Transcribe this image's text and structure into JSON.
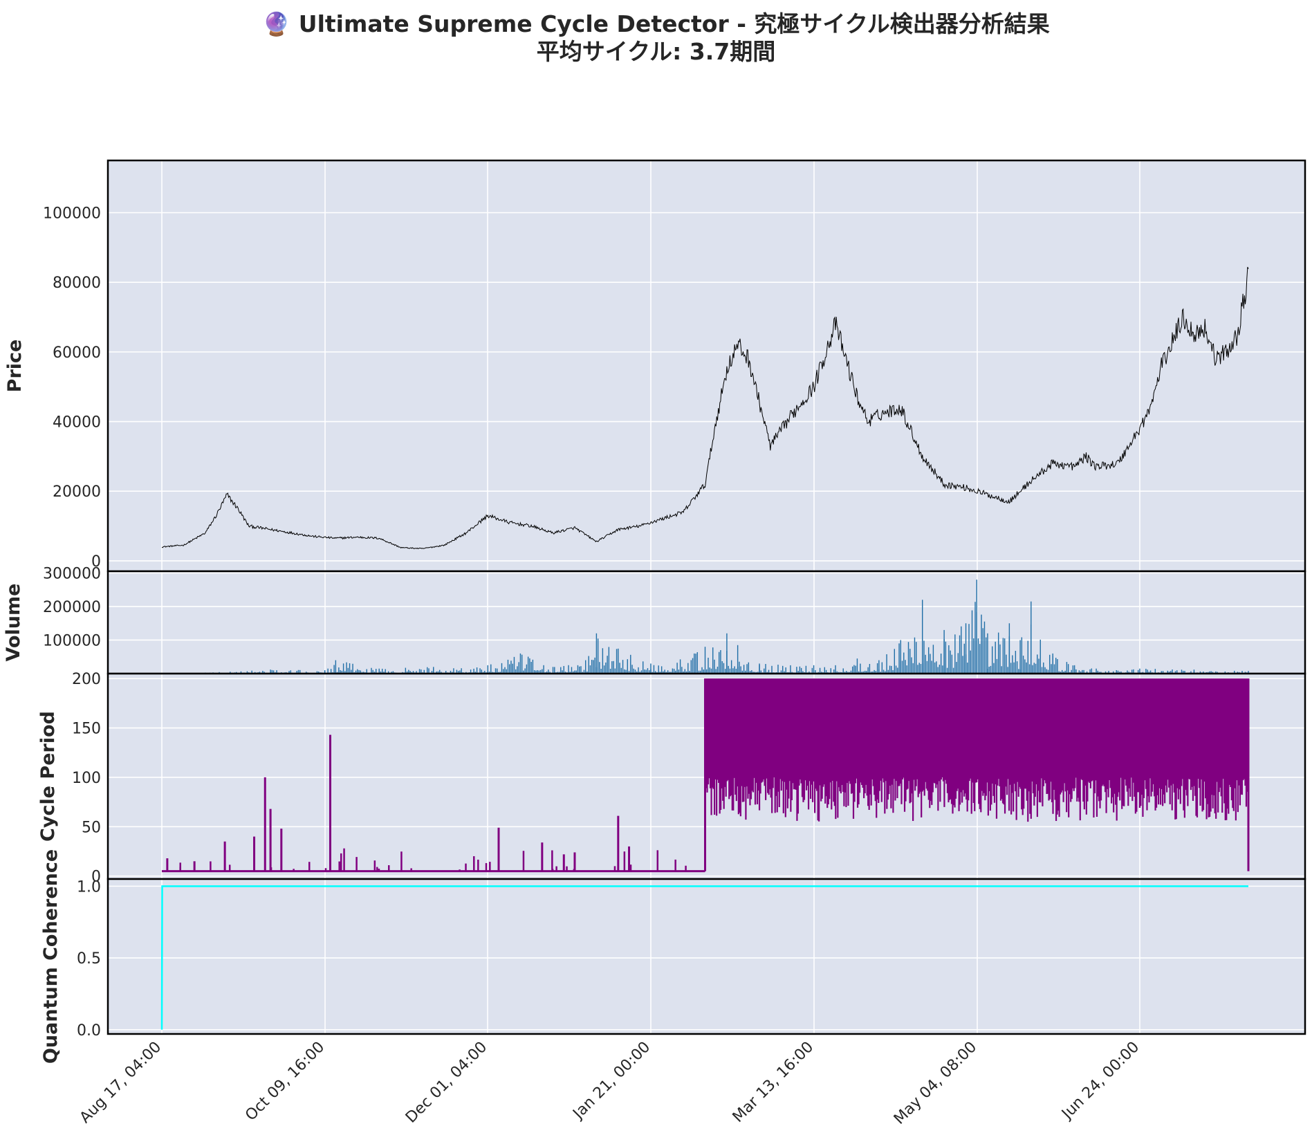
{
  "chart_data": {
    "type": "line",
    "title": "🔮 Ultimate Supreme Cycle Detector - 究極サイクル検出器分析結果",
    "subtitle": "平均サイクル: 3.7期間",
    "x_ticks": [
      "Aug 17, 04:00",
      "Oct 09, 16:00",
      "Dec 01, 04:00",
      "Jan 21, 00:00",
      "Mar 13, 16:00",
      "May 04, 08:00",
      "Jun 24, 00:00"
    ],
    "grid": true,
    "panels": [
      {
        "id": "price",
        "ylabel": "Price",
        "type": "line",
        "color": "#000000",
        "ylim": [
          -3000,
          115000
        ],
        "yticks": [
          0,
          20000,
          40000,
          60000,
          80000,
          100000
        ],
        "series": [
          {
            "x": [
              0,
              0.02,
              0.04,
              0.05,
              0.06,
              0.07,
              0.08,
              0.1,
              0.12,
              0.14,
              0.16,
              0.18,
              0.2,
              0.22,
              0.24,
              0.26,
              0.28,
              0.3,
              0.32,
              0.34,
              0.36,
              0.38,
              0.4,
              0.42,
              0.44,
              0.46,
              0.48,
              0.5,
              0.51,
              0.52,
              0.53,
              0.54,
              0.56,
              0.58,
              0.6,
              0.62,
              0.64,
              0.65,
              0.66,
              0.68,
              0.7,
              0.72,
              0.74,
              0.76,
              0.78,
              0.8,
              0.82,
              0.84,
              0.85,
              0.86,
              0.88,
              0.9,
              0.91,
              0.92,
              0.94,
              0.95,
              0.96,
              0.97,
              0.98,
              0.99,
              1.0
            ],
            "values": [
              4000,
              4500,
              8000,
              13000,
              19000,
              15000,
              10000,
              9000,
              8000,
              7000,
              6500,
              6800,
              6500,
              3800,
              3500,
              4500,
              8000,
              13000,
              11000,
              10000,
              8000,
              9500,
              5500,
              9000,
              10000,
              12000,
              14000,
              22000,
              40000,
              55000,
              62000,
              58000,
              33000,
              42000,
              50000,
              68000,
              47000,
              40000,
              42000,
              44000,
              30000,
              22000,
              21000,
              19000,
              17000,
              23000,
              28000,
              27000,
              30000,
              27000,
              28000,
              38000,
              44000,
              56000,
              70000,
              65000,
              67000,
              58000,
              60000,
              65000,
              82000
            ]
          }
        ]
      },
      {
        "id": "volume",
        "ylabel": "Volume",
        "type": "bar",
        "color": "#1f6ea6",
        "ylim": [
          0,
          305000
        ],
        "yticks": [
          100000,
          200000,
          300000
        ],
        "series": [
          {
            "x": [
              0.04,
              0.1,
              0.15,
              0.16,
              0.2,
              0.25,
              0.3,
              0.33,
              0.36,
              0.39,
              0.4,
              0.45,
              0.49,
              0.5,
              0.52,
              0.53,
              0.55,
              0.6,
              0.62,
              0.64,
              0.66,
              0.68,
              0.7,
              0.72,
              0.74,
              0.75,
              0.76,
              0.78,
              0.79,
              0.8,
              0.82,
              0.84,
              0.86,
              0.9,
              0.95,
              1.0
            ],
            "values": [
              3000,
              12000,
              10000,
              40000,
              15000,
              20000,
              25000,
              60000,
              20000,
              40000,
              120000,
              30000,
              60000,
              80000,
              120000,
              85000,
              30000,
              25000,
              25000,
              45000,
              40000,
              100000,
              220000,
              130000,
              150000,
              280000,
              120000,
              150000,
              100000,
              215000,
              60000,
              25000,
              15000,
              15000,
              12000,
              8000
            ]
          }
        ]
      },
      {
        "id": "cycle",
        "ylabel": "Cycle Period",
        "type": "line",
        "color": "#800080",
        "ylim": [
          -3,
          205
        ],
        "yticks": [
          0,
          50,
          100,
          150,
          200
        ],
        "series": [
          {
            "x": [
              0.0,
              0.005,
              0.03,
              0.058,
              0.085,
              0.095,
              0.1,
              0.11,
              0.155,
              0.31,
              0.37,
              0.38,
              0.35,
              0.42,
              0.43,
              0.5,
              0.5
            ],
            "values": [
              5,
              18,
              15,
              35,
              40,
              100,
              68,
              48,
              143,
              49,
              22,
              24,
              34,
              61,
              30,
              5,
              200
            ],
            "regime_after": {
              "x_start": 0.5,
              "min": 55,
              "max": 200
            }
          }
        ]
      },
      {
        "id": "coherence",
        "ylabel": "Quantum Coherence",
        "type": "line",
        "color": "#00ffff",
        "ylim": [
          -0.03,
          1.05
        ],
        "yticks": [
          0.0,
          0.5,
          1.0
        ],
        "series": [
          {
            "x": [
              0,
              0.0003,
              1.0
            ],
            "values": [
              0.0,
              1.0,
              1.0
            ]
          }
        ]
      }
    ]
  }
}
